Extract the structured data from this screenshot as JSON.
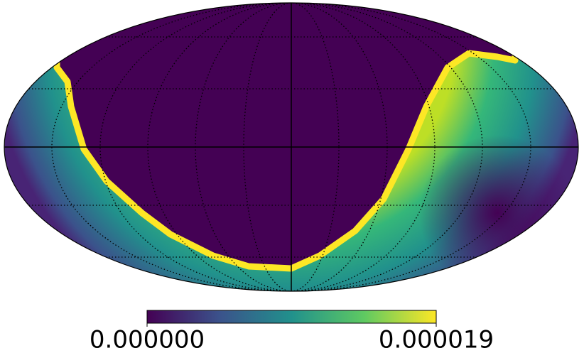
{
  "chart_data": {
    "type": "mollweide",
    "colorbar": {
      "lim": [
        0,
        1.9e-05
      ],
      "colors": [
        "#440154",
        "#3b528b",
        "#21918c",
        "#5ec962",
        "#fde725"
      ],
      "ticks": [
        {
          "value": 0,
          "label": "0.000000"
        },
        {
          "value": 1.9e-05,
          "label": "0.000019"
        }
      ]
    }
  }
}
